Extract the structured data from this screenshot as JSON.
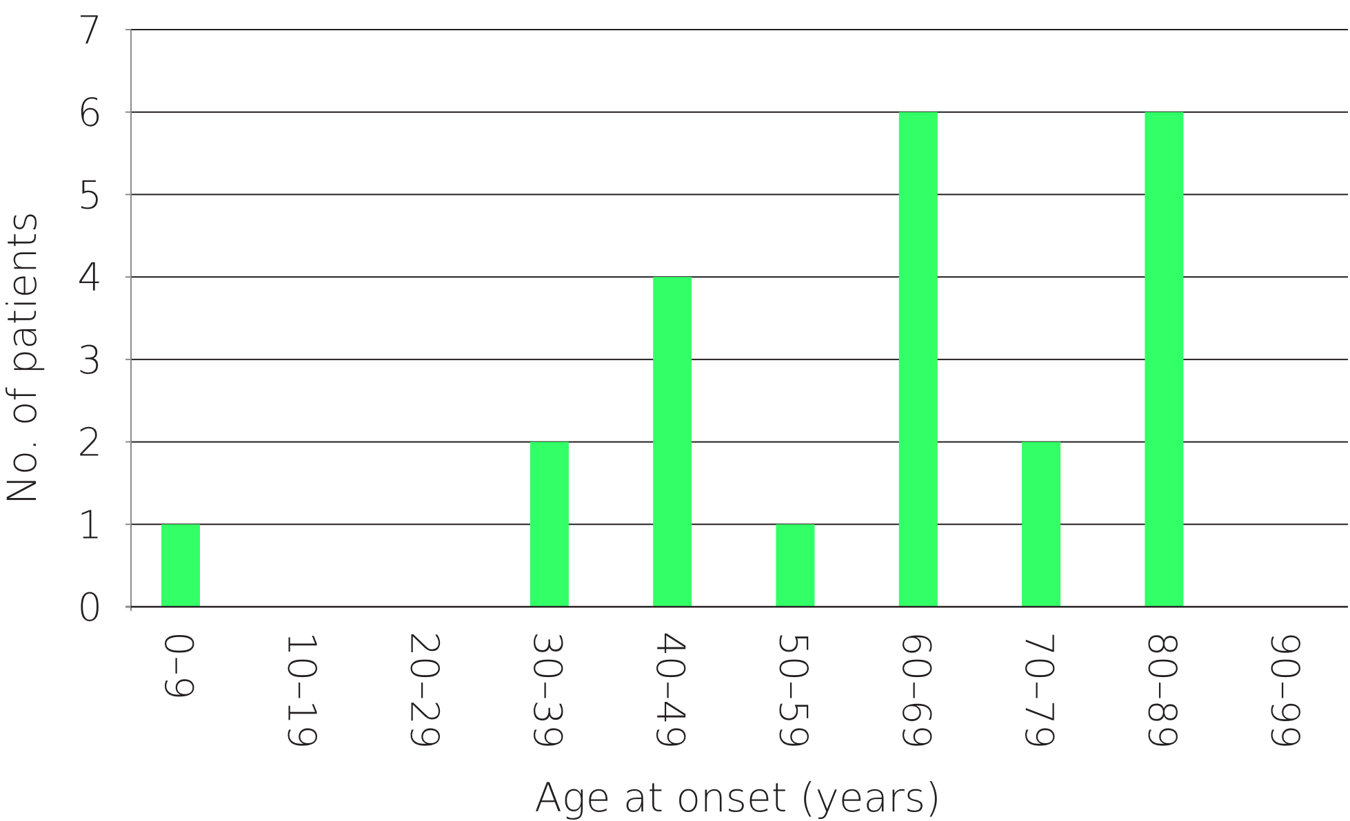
{
  "chart_data": {
    "type": "bar",
    "categories": [
      "0–9",
      "10–19",
      "20–29",
      "30–39",
      "40–49",
      "50–59",
      "60–69",
      "70–79",
      "80–89",
      "90–99"
    ],
    "values": [
      1,
      0,
      0,
      2,
      4,
      1,
      6,
      2,
      6,
      0
    ],
    "title": "",
    "xlabel": "Age at onset (years)",
    "ylabel": "No. of patients",
    "ylim": [
      0,
      7
    ],
    "yticks": [
      0,
      1,
      2,
      3,
      4,
      5,
      6,
      7
    ],
    "grid": true,
    "bar_color": "#33ff66",
    "grid_color": "#231f20",
    "axis_color": "#8a8a8a"
  }
}
